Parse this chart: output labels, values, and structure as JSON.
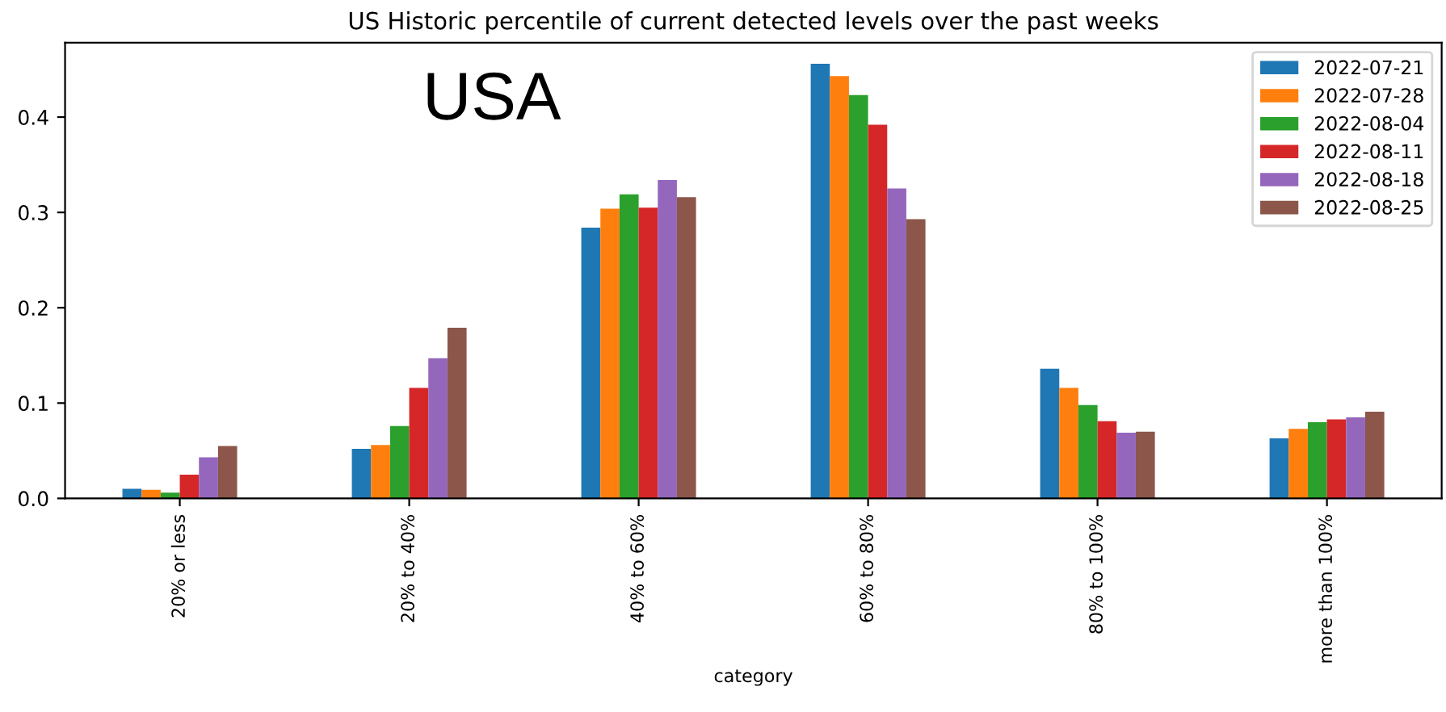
{
  "chart_data": {
    "type": "bar",
    "title": "US Historic percentile of current detected levels over the past weeks",
    "xlabel": "category",
    "annotations": [
      "USA"
    ],
    "categories": [
      "20% or less",
      "20% to 40%",
      "40% to 60%",
      "60% to 80%",
      "80% to 100%",
      "more than 100%"
    ],
    "series": [
      {
        "name": "2022-07-21",
        "color": "#1f77b4",
        "values": [
          0.01,
          0.052,
          0.284,
          0.456,
          0.136,
          0.063
        ]
      },
      {
        "name": "2022-07-28",
        "color": "#ff7f0e",
        "values": [
          0.009,
          0.056,
          0.304,
          0.443,
          0.116,
          0.073
        ]
      },
      {
        "name": "2022-08-04",
        "color": "#2ca02c",
        "values": [
          0.006,
          0.076,
          0.319,
          0.423,
          0.098,
          0.08
        ]
      },
      {
        "name": "2022-08-11",
        "color": "#d62728",
        "values": [
          0.025,
          0.116,
          0.305,
          0.392,
          0.081,
          0.083
        ]
      },
      {
        "name": "2022-08-18",
        "color": "#9467bd",
        "values": [
          0.043,
          0.147,
          0.334,
          0.325,
          0.069,
          0.085
        ]
      },
      {
        "name": "2022-08-25",
        "color": "#8c564b",
        "values": [
          0.055,
          0.179,
          0.316,
          0.293,
          0.07,
          0.091
        ]
      }
    ],
    "ylim": [
      0,
      0.478
    ],
    "yticks": [
      {
        "value": 0,
        "label": "0.0"
      },
      0.1,
      0.2,
      0.3,
      0.4
    ],
    "grid": false,
    "legend": "top right"
  }
}
